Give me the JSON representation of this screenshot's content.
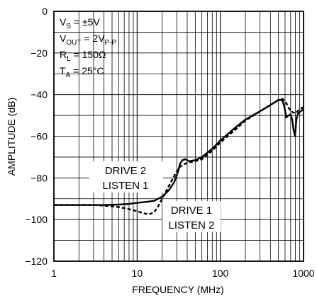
{
  "chart_data": {
    "type": "line",
    "title": "",
    "xlabel": "FREQUENCY (MHz)",
    "ylabel": "AMPLITUDE (dB)",
    "x_scale": "log",
    "xlim": [
      1,
      1000
    ],
    "ylim": [
      -120,
      0
    ],
    "x_ticks": [
      "1",
      "10",
      "100",
      "1000"
    ],
    "y_ticks": [
      "0",
      "−20",
      "−40",
      "−60",
      "−80",
      "−100",
      "−120"
    ],
    "grid": true,
    "conditions": {
      "vs": {
        "main": "V",
        "sub": "S",
        "rest": " = ±5V"
      },
      "vout": {
        "main": "V",
        "sub": "OUT",
        "rest": " = 2V",
        "sub2": "P-P"
      },
      "rl": {
        "main": "R",
        "sub": "L",
        "rest": " = 150Ω"
      },
      "ta": {
        "main": "T",
        "sub": "A",
        "rest": " = 25°C"
      }
    },
    "annotations": {
      "series1_line1": "DRIVE 2",
      "series1_line2": "LISTEN 1",
      "series2_line1": "DRIVE 1",
      "series2_line2": "LISTEN 2"
    },
    "series": [
      {
        "style": "solid",
        "x": [
          1,
          2,
          4,
          6,
          8,
          10,
          13,
          16,
          20,
          24,
          28,
          31,
          33,
          35,
          38,
          42,
          50,
          60,
          80,
          100,
          150,
          200,
          300,
          400,
          480,
          530,
          560,
          590,
          620,
          660,
          700,
          730,
          760,
          790,
          820,
          860,
          1000
        ],
        "y": [
          -93,
          -93,
          -93,
          -92.8,
          -92.5,
          -92,
          -91.5,
          -91,
          -89,
          -86,
          -82,
          -77,
          -73,
          -71.5,
          -71,
          -72,
          -71.5,
          -70,
          -66,
          -62,
          -56,
          -52,
          -48,
          -45,
          -43,
          -42.5,
          -43,
          -46,
          -51,
          -50,
          -49.5,
          -52,
          -57,
          -60,
          -52,
          -49,
          -47
        ]
      },
      {
        "style": "dashed",
        "x": [
          1,
          3,
          4.5,
          6,
          8,
          10,
          12,
          14,
          16,
          18,
          20,
          24,
          28,
          32,
          36,
          42,
          50,
          60,
          80,
          100,
          150,
          200,
          300,
          400,
          500,
          560,
          620,
          700,
          800,
          900,
          1000
        ],
        "y": [
          -93,
          -93,
          -93.5,
          -94,
          -95,
          -96,
          -97,
          -97.5,
          -96.5,
          -93.5,
          -90,
          -84,
          -79,
          -75,
          -73.5,
          -72.5,
          -72,
          -71,
          -67,
          -63,
          -57,
          -52.5,
          -48,
          -45,
          -42.5,
          -42,
          -44,
          -48,
          -49,
          -47,
          -46
        ]
      }
    ]
  }
}
